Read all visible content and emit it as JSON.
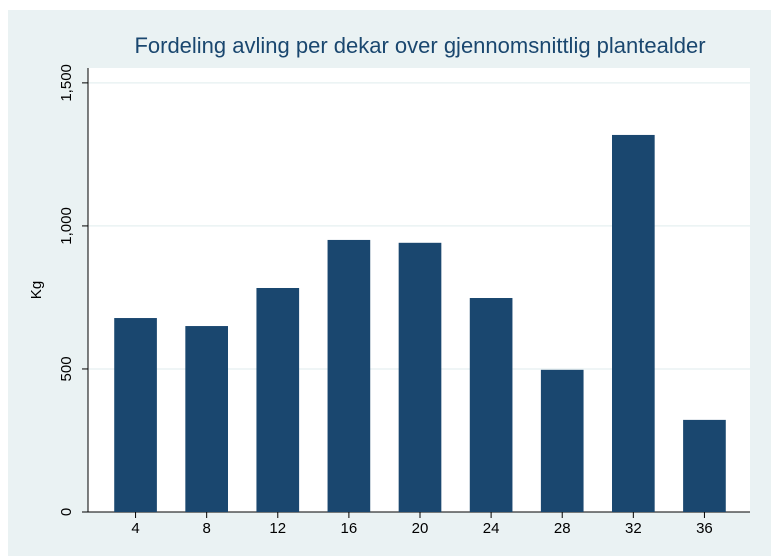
{
  "chart_data": {
    "type": "bar",
    "title": "Fordeling avling per dekar over gjennomsnittlig plantealder",
    "y_label": "Kg",
    "categories": [
      "4",
      "8",
      "12",
      "16",
      "20",
      "24",
      "28",
      "32",
      "36"
    ],
    "values": [
      678,
      650,
      783,
      951,
      941,
      748,
      497,
      1318,
      322
    ],
    "color": "#1a476f",
    "ylim": [
      0,
      1552
    ],
    "yticks": [
      0,
      500,
      {
        "value": 1000,
        "label": "1,000"
      },
      {
        "value": 1500,
        "label": "1,500"
      }
    ],
    "grid": true
  }
}
